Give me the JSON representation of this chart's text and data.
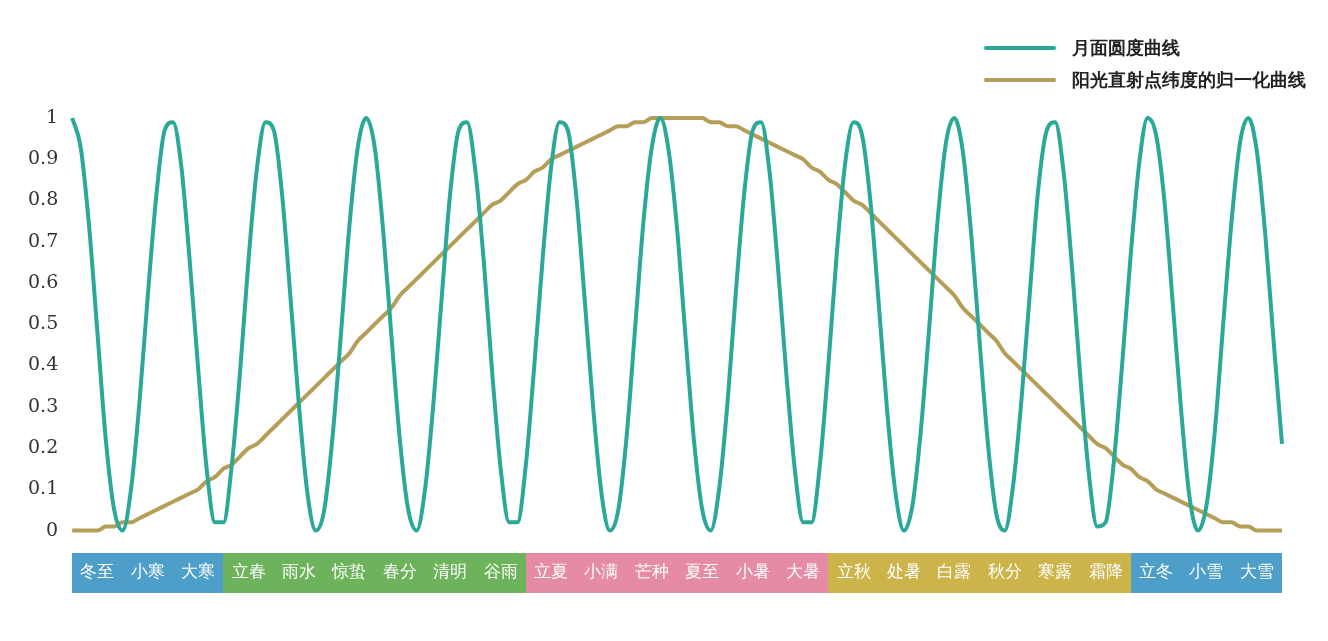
{
  "chart_data": {
    "type": "line",
    "marker": "none",
    "grid": false,
    "legend": "top right",
    "ylim": [
      0,
      1
    ],
    "yticks": [
      0,
      0.1,
      0.2,
      0.3,
      0.4,
      0.5,
      0.6,
      0.7,
      0.8,
      0.9,
      1
    ],
    "categories": [
      null,
      null,
      null,
      "冬至",
      null,
      null,
      null,
      null,
      null,
      "小寒",
      null,
      null,
      null,
      null,
      null,
      "大寒",
      null,
      null,
      null,
      null,
      null,
      "立春",
      null,
      null,
      null,
      null,
      null,
      "雨水",
      null,
      null,
      null,
      null,
      null,
      "惊蛰",
      null,
      null,
      null,
      null,
      null,
      "春分",
      null,
      null,
      null,
      null,
      null,
      "清明",
      null,
      null,
      null,
      null,
      null,
      "谷雨",
      null,
      null,
      null,
      null,
      null,
      "立夏",
      null,
      null,
      null,
      null,
      null,
      "小满",
      null,
      null,
      null,
      null,
      null,
      "芒种",
      null,
      null,
      null,
      null,
      null,
      "夏至",
      null,
      null,
      null,
      null,
      null,
      "小暑",
      null,
      null,
      null,
      null,
      null,
      "大暑",
      null,
      null,
      null,
      null,
      null,
      "立秋",
      null,
      null,
      null,
      null,
      null,
      "处暑",
      null,
      null,
      null,
      null,
      null,
      "白露",
      null,
      null,
      null,
      null,
      null,
      "秋分",
      null,
      null,
      null,
      null,
      null,
      "寒露",
      null,
      null,
      null,
      null,
      null,
      "霜降",
      null,
      null,
      null,
      null,
      null,
      "立冬",
      null,
      null,
      null,
      null,
      null,
      "小雪",
      null,
      null,
      null,
      null,
      null,
      "大雪",
      null,
      null,
      null
    ],
    "series": [
      {
        "name": "月面圆度曲线",
        "color": "#2aa898",
        "values": [
          1,
          0.93,
          0.74,
          0.48,
          0.22,
          0.05,
          0,
          0.1,
          0.31,
          0.57,
          0.81,
          0.97,
          0.99,
          0.88,
          0.65,
          0.39,
          0.15,
          0.02,
          0.02,
          0.16,
          0.39,
          0.66,
          0.88,
          0.99,
          0.97,
          0.81,
          0.56,
          0.3,
          0.09,
          0,
          0.05,
          0.23,
          0.48,
          0.74,
          0.93,
          1,
          0.93,
          0.73,
          0.47,
          0.22,
          0.05,
          0,
          0.1,
          0.31,
          0.57,
          0.82,
          0.97,
          0.99,
          0.87,
          0.65,
          0.38,
          0.15,
          0.02,
          0.02,
          0.16,
          0.4,
          0.66,
          0.88,
          0.99,
          0.97,
          0.81,
          0.56,
          0.3,
          0.09,
          0,
          0.05,
          0.23,
          0.49,
          0.75,
          0.93,
          1,
          0.92,
          0.73,
          0.47,
          0.22,
          0.05,
          0,
          0.1,
          0.31,
          0.58,
          0.82,
          0.97,
          0.99,
          0.87,
          0.64,
          0.38,
          0.15,
          0.02,
          0.02,
          0.16,
          0.4,
          0.67,
          0.89,
          0.99,
          0.96,
          0.8,
          0.55,
          0.29,
          0.09,
          0,
          0.06,
          0.24,
          0.49,
          0.75,
          0.94,
          1,
          0.92,
          0.72,
          0.46,
          0.21,
          0.04,
          0,
          0.11,
          0.32,
          0.58,
          0.83,
          0.97,
          0.99,
          0.87,
          0.64,
          0.37,
          0.14,
          0.01,
          0.02,
          0.17,
          0.41,
          0.67,
          0.89,
          1,
          0.96,
          0.8,
          0.55,
          0.29,
          0.08,
          0,
          0.06,
          0.24,
          0.5,
          0.75,
          0.94,
          1,
          0.92,
          0.72,
          0.46,
          0.21
        ]
      },
      {
        "name": "阳光直射点纬度的归一化曲线",
        "color": "#b49e58",
        "values": [
          0,
          0,
          0,
          0,
          0.01,
          0.01,
          0.02,
          0.02,
          0.03,
          0.04,
          0.05,
          0.06,
          0.07,
          0.08,
          0.09,
          0.1,
          0.12,
          0.13,
          0.15,
          0.16,
          0.18,
          0.2,
          0.21,
          0.23,
          0.25,
          0.27,
          0.29,
          0.31,
          0.33,
          0.35,
          0.37,
          0.39,
          0.41,
          0.43,
          0.46,
          0.48,
          0.5,
          0.52,
          0.54,
          0.57,
          0.59,
          0.61,
          0.63,
          0.65,
          0.67,
          0.69,
          0.71,
          0.73,
          0.75,
          0.77,
          0.79,
          0.8,
          0.82,
          0.84,
          0.85,
          0.87,
          0.88,
          0.9,
          0.91,
          0.92,
          0.93,
          0.94,
          0.95,
          0.96,
          0.97,
          0.98,
          0.98,
          0.99,
          0.99,
          1,
          1,
          1,
          1,
          1,
          1,
          1,
          0.99,
          0.99,
          0.98,
          0.98,
          0.97,
          0.96,
          0.95,
          0.94,
          0.93,
          0.92,
          0.91,
          0.9,
          0.88,
          0.87,
          0.85,
          0.84,
          0.82,
          0.8,
          0.79,
          0.77,
          0.75,
          0.73,
          0.71,
          0.69,
          0.67,
          0.65,
          0.63,
          0.61,
          0.59,
          0.57,
          0.54,
          0.52,
          0.5,
          0.48,
          0.46,
          0.43,
          0.41,
          0.39,
          0.37,
          0.35,
          0.33,
          0.31,
          0.29,
          0.27,
          0.25,
          0.23,
          0.21,
          0.2,
          0.18,
          0.16,
          0.15,
          0.13,
          0.12,
          0.1,
          0.09,
          0.08,
          0.07,
          0.06,
          0.05,
          0.04,
          0.03,
          0.02,
          0.02,
          0.01,
          0.01,
          0,
          0,
          0,
          0
        ]
      }
    ]
  }
}
